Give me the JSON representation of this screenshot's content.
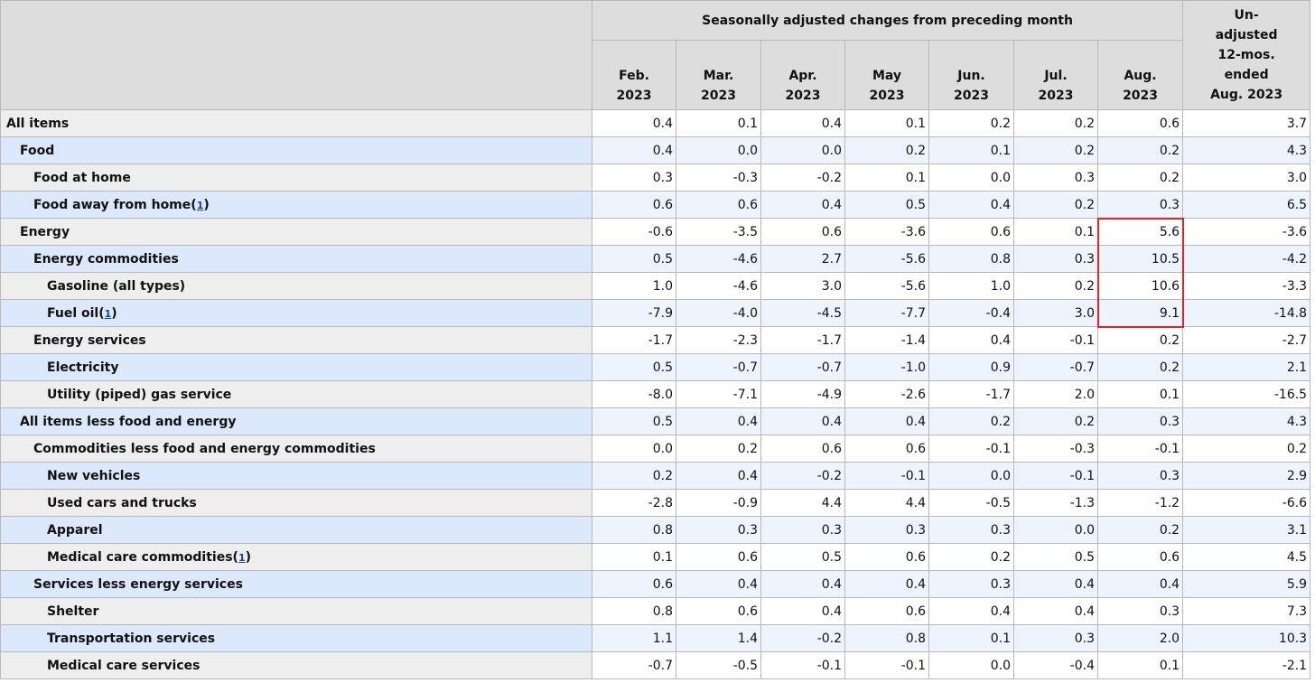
{
  "header": {
    "group_label": "Seasonally adjusted changes from preceding month",
    "months": [
      [
        "Feb.",
        "2023"
      ],
      [
        "Mar.",
        "2023"
      ],
      [
        "Apr.",
        "2023"
      ],
      [
        "May",
        "2023"
      ],
      [
        "Jun.",
        "2023"
      ],
      [
        "Jul.",
        "2023"
      ],
      [
        "Aug.",
        "2023"
      ]
    ],
    "unadjusted_label": [
      "Un-",
      "adjusted",
      "12-mos.",
      "ended",
      "Aug. 2023"
    ]
  },
  "highlight_color": "#e8221c",
  "rows": [
    {
      "label": "All items",
      "indent": 0,
      "values": [
        "0.4",
        "0.1",
        "0.4",
        "0.1",
        "0.2",
        "0.2",
        "0.6",
        "3.7"
      ]
    },
    {
      "label": "Food",
      "indent": 1,
      "values": [
        "0.4",
        "0.0",
        "0.0",
        "0.2",
        "0.1",
        "0.2",
        "0.2",
        "4.3"
      ]
    },
    {
      "label": "Food at home",
      "indent": 2,
      "values": [
        "0.3",
        "-0.3",
        "-0.2",
        "0.1",
        "0.0",
        "0.3",
        "0.2",
        "3.0"
      ]
    },
    {
      "label": "Food away from home",
      "indent": 2,
      "footnote": "1",
      "values": [
        "0.6",
        "0.6",
        "0.4",
        "0.5",
        "0.4",
        "0.2",
        "0.3",
        "6.5"
      ]
    },
    {
      "label": "Energy",
      "indent": 1,
      "values": [
        "-0.6",
        "-3.5",
        "0.6",
        "-3.6",
        "0.6",
        "0.1",
        "5.6",
        "-3.6"
      ]
    },
    {
      "label": "Energy commodities",
      "indent": 2,
      "values": [
        "0.5",
        "-4.6",
        "2.7",
        "-5.6",
        "0.8",
        "0.3",
        "10.5",
        "-4.2"
      ]
    },
    {
      "label": "Gasoline (all types)",
      "indent": 3,
      "values": [
        "1.0",
        "-4.6",
        "3.0",
        "-5.6",
        "1.0",
        "0.2",
        "10.6",
        "-3.3"
      ]
    },
    {
      "label": "Fuel oil",
      "indent": 3,
      "footnote": "1",
      "values": [
        "-7.9",
        "-4.0",
        "-4.5",
        "-7.7",
        "-0.4",
        "3.0",
        "9.1",
        "-14.8"
      ]
    },
    {
      "label": "Energy services",
      "indent": 2,
      "values": [
        "-1.7",
        "-2.3",
        "-1.7",
        "-1.4",
        "0.4",
        "-0.1",
        "0.2",
        "-2.7"
      ]
    },
    {
      "label": "Electricity",
      "indent": 3,
      "values": [
        "0.5",
        "-0.7",
        "-0.7",
        "-1.0",
        "0.9",
        "-0.7",
        "0.2",
        "2.1"
      ]
    },
    {
      "label": "Utility (piped) gas service",
      "indent": 3,
      "values": [
        "-8.0",
        "-7.1",
        "-4.9",
        "-2.6",
        "-1.7",
        "2.0",
        "0.1",
        "-16.5"
      ]
    },
    {
      "label": "All items less food and energy",
      "indent": 1,
      "values": [
        "0.5",
        "0.4",
        "0.4",
        "0.4",
        "0.2",
        "0.2",
        "0.3",
        "4.3"
      ]
    },
    {
      "label": "Commodities less food and energy commodities",
      "indent": 2,
      "values": [
        "0.0",
        "0.2",
        "0.6",
        "0.6",
        "-0.1",
        "-0.3",
        "-0.1",
        "0.2"
      ]
    },
    {
      "label": "New vehicles",
      "indent": 3,
      "values": [
        "0.2",
        "0.4",
        "-0.2",
        "-0.1",
        "0.0",
        "-0.1",
        "0.3",
        "2.9"
      ]
    },
    {
      "label": "Used cars and trucks",
      "indent": 3,
      "values": [
        "-2.8",
        "-0.9",
        "4.4",
        "4.4",
        "-0.5",
        "-1.3",
        "-1.2",
        "-6.6"
      ]
    },
    {
      "label": "Apparel",
      "indent": 3,
      "values": [
        "0.8",
        "0.3",
        "0.3",
        "0.3",
        "0.3",
        "0.0",
        "0.2",
        "3.1"
      ]
    },
    {
      "label": "Medical care commodities",
      "indent": 3,
      "footnote": "1",
      "values": [
        "0.1",
        "0.6",
        "0.5",
        "0.6",
        "0.2",
        "0.5",
        "0.6",
        "4.5"
      ]
    },
    {
      "label": "Services less energy services",
      "indent": 2,
      "values": [
        "0.6",
        "0.4",
        "0.4",
        "0.4",
        "0.3",
        "0.4",
        "0.4",
        "5.9"
      ]
    },
    {
      "label": "Shelter",
      "indent": 3,
      "values": [
        "0.8",
        "0.6",
        "0.4",
        "0.6",
        "0.4",
        "0.4",
        "0.3",
        "7.3"
      ]
    },
    {
      "label": "Transportation services",
      "indent": 3,
      "values": [
        "1.1",
        "1.4",
        "-0.2",
        "0.8",
        "0.1",
        "0.3",
        "2.0",
        "10.3"
      ]
    },
    {
      "label": "Medical care services",
      "indent": 3,
      "values": [
        "-0.7",
        "-0.5",
        "-0.1",
        "-0.1",
        "0.0",
        "-0.4",
        "0.1",
        "-2.1"
      ]
    }
  ]
}
